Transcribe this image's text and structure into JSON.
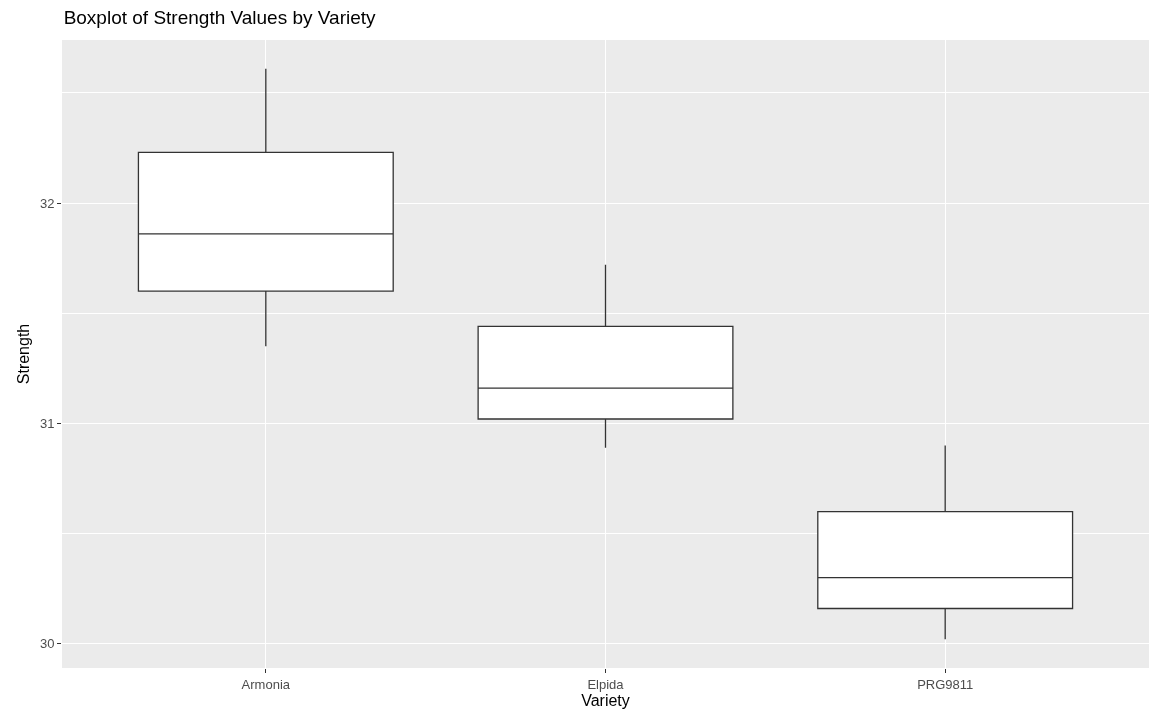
{
  "chart_data": {
    "type": "box",
    "title": "Boxplot of Strength Values by Variety",
    "xlabel": "Variety",
    "ylabel": "Strength",
    "categories": [
      "Armonia",
      "Elpida",
      "PRG9811"
    ],
    "boxes": [
      {
        "low": 31.35,
        "q1": 31.6,
        "median": 31.86,
        "q3": 32.23,
        "high": 32.61
      },
      {
        "low": 30.89,
        "q1": 31.02,
        "median": 31.16,
        "q3": 31.44,
        "high": 31.72
      },
      {
        "low": 30.02,
        "q1": 30.16,
        "median": 30.3,
        "q3": 30.6,
        "high": 30.9
      }
    ],
    "color": "#333333",
    "ylim": [
      29.89,
      32.74
    ],
    "yticks": [
      30,
      31,
      32
    ],
    "grid": true,
    "legend": false
  }
}
